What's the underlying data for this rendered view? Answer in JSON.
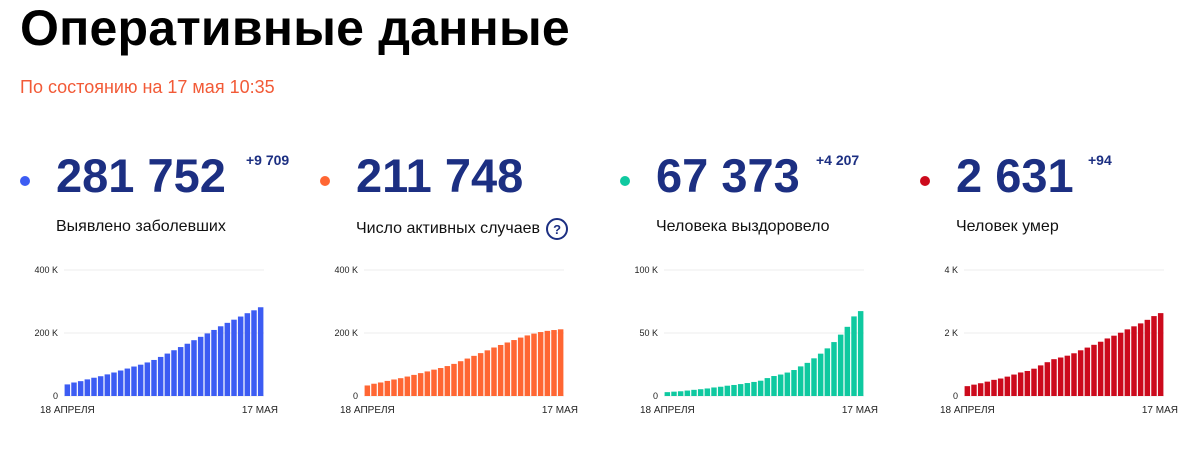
{
  "header": {
    "title": "Оперативные данные",
    "updated": "По состоянию на 17 мая 10:35"
  },
  "cards": [
    {
      "value": "281 752",
      "delta": "+9 709",
      "label": "Выявлено заболевших",
      "color": "#3c5cf3"
    },
    {
      "value": "211 748",
      "delta": "",
      "label": "Число активных случаев",
      "help": "?",
      "color": "#ff6633"
    },
    {
      "value": "67 373",
      "delta": "+4 207",
      "label": "Человека выздоровело",
      "color": "#0fc9a0"
    },
    {
      "value": "2 631",
      "delta": "+94",
      "label": "Человек умер",
      "color": "#cc0a1c"
    }
  ],
  "chart_data": [
    {
      "type": "bar",
      "xlabels": [
        "18 АПРЕЛЯ",
        "17 МАЯ"
      ],
      "yticks": [
        "0",
        "200 K",
        "400 K"
      ],
      "ylim": [
        0,
        400000
      ],
      "grid": true,
      "color": "#3c5cf3",
      "values": [
        36793,
        42853,
        47121,
        52763,
        57999,
        62773,
        68622,
        74588,
        80949,
        87147,
        93558,
        99399,
        106498,
        114431,
        124054,
        134687,
        145268,
        155370,
        165929,
        177160,
        187859,
        198676,
        209688,
        221344,
        232243,
        242271,
        252245,
        262843,
        272043,
        281752
      ]
    },
    {
      "type": "bar",
      "xlabels": [
        "18 АПРЕЛЯ",
        "17 МАЯ"
      ],
      "yticks": [
        "0",
        "200 K",
        "400 K"
      ],
      "ylim": [
        0,
        400000
      ],
      "grid": true,
      "color": "#ff6633",
      "values": [
        33423,
        38972,
        42928,
        47847,
        52395,
        56569,
        61745,
        67001,
        72599,
        77996,
        83683,
        88802,
        95022,
        101961,
        110438,
        118868,
        127447,
        136096,
        144925,
        153949,
        161970,
        169864,
        177615,
        185442,
        192288,
        198042,
        202998,
        206738,
        209401,
        211748
      ]
    },
    {
      "type": "bar",
      "xlabels": [
        "18 АПРЕЛЯ",
        "17 МАЯ"
      ],
      "yticks": [
        "0",
        "50 K",
        "100 K"
      ],
      "ylim": [
        0,
        100000
      ],
      "grid": true,
      "color": "#0fc9a0",
      "values": [
        3057,
        3446,
        3751,
        4318,
        4895,
        5391,
        5973,
        6767,
        7346,
        8172,
        8752,
        9458,
        10286,
        11153,
        12142,
        14217,
        15859,
        17028,
        18599,
        20615,
        23500,
        26300,
        29900,
        33600,
        37800,
        42800,
        48700,
        54900,
        63166,
        67373
      ]
    },
    {
      "type": "bar",
      "xlabels": [
        "18 АПРЕЛЯ",
        "17 МАЯ"
      ],
      "yticks": [
        "0",
        "2 K",
        "4 K"
      ],
      "ylim": [
        0,
        4000
      ],
      "grid": true,
      "color": "#cc0a1c",
      "values": [
        313,
        361,
        405,
        456,
        513,
        555,
        615,
        681,
        747,
        794,
        867,
        972,
        1073,
        1169,
        1222,
        1280,
        1356,
        1451,
        1537,
        1625,
        1723,
        1827,
        1915,
        2009,
        2116,
        2212,
        2305,
        2418,
        2537,
        2631
      ]
    }
  ]
}
